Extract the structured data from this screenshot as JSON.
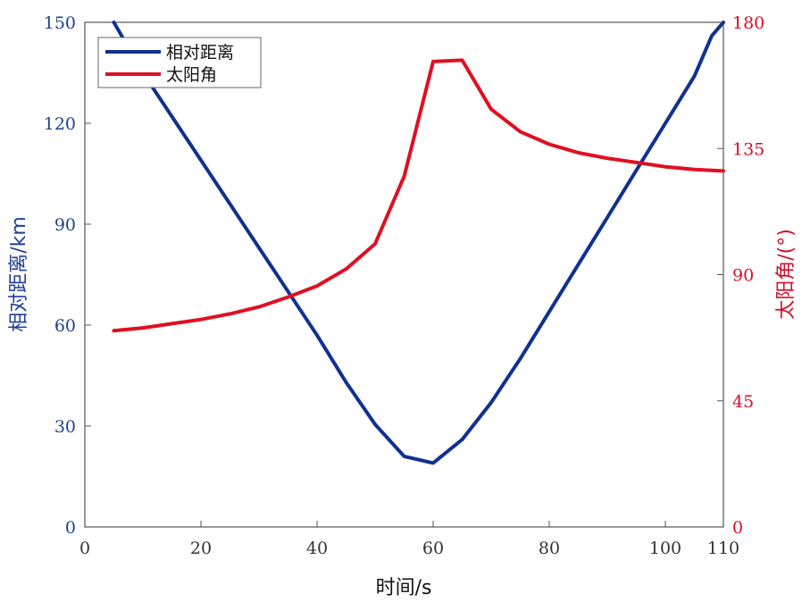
{
  "chart_data": {
    "type": "line",
    "xlabel": "时间/s",
    "ylabel_left": "相对距离/km",
    "ylabel_right": "太阳角/(°)",
    "xlim": [
      0,
      110
    ],
    "ylim_left": [
      0,
      150
    ],
    "ylim_right": [
      0,
      180
    ],
    "xticks": [
      "0",
      "20",
      "40",
      "60",
      "80",
      "100",
      "110"
    ],
    "xtick_values": [
      0,
      20,
      40,
      60,
      80,
      100,
      110
    ],
    "yticks_left": [
      "0",
      "30",
      "60",
      "90",
      "120",
      "150"
    ],
    "ytick_left_values": [
      0,
      30,
      60,
      90,
      120,
      150
    ],
    "yticks_right": [
      "0",
      "45",
      "90",
      "135",
      "180"
    ],
    "ytick_right_values": [
      0,
      45,
      90,
      135,
      180
    ],
    "grid": false,
    "legend_position": "top-left",
    "colors": {
      "left_axis": "#1f3f8f",
      "right_axis": "#d20f2a",
      "series_blue": "#10318f",
      "series_red": "#e00f22"
    },
    "series": [
      {
        "name": "相对距离",
        "axis": "left",
        "color": "#10318f",
        "x": [
          5,
          10,
          15,
          20,
          25,
          30,
          35,
          40,
          45,
          50,
          55,
          60,
          65,
          70,
          75,
          80,
          85,
          90,
          95,
          100,
          105,
          108,
          110
        ],
        "y": [
          150,
          135,
          122,
          109,
          96,
          83,
          70,
          57,
          43,
          30.5,
          21,
          19,
          26,
          37,
          50,
          64,
          78,
          92,
          106,
          120,
          134,
          146,
          150
        ]
      },
      {
        "name": "太阳角",
        "axis": "right",
        "color": "#e00f22",
        "x": [
          5,
          10,
          15,
          20,
          25,
          30,
          35,
          40,
          45,
          50,
          55,
          60,
          65,
          70,
          75,
          80,
          85,
          90,
          95,
          100,
          105,
          110
        ],
        "y": [
          70,
          71,
          72.5,
          74,
          76,
          78.5,
          82,
          86,
          92,
          101,
          125,
          166,
          166.5,
          149,
          141,
          136.5,
          133.5,
          131.5,
          130,
          128.5,
          127.5,
          127
        ]
      }
    ]
  }
}
